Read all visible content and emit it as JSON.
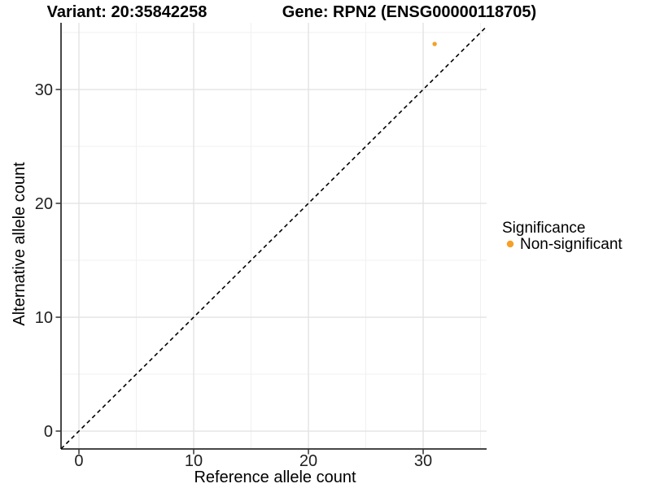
{
  "header": {
    "title_left": "Variant: 20:35842258",
    "title_right": "Gene: RPN2 (ENSG00000118705)"
  },
  "legend": {
    "title": "Significance",
    "items": [
      {
        "label": "Non-significant",
        "color": "#F5A028"
      }
    ]
  },
  "chart_data": {
    "type": "scatter",
    "title": "Variant: 20:35842258 | Gene: RPN2 (ENSG00000118705)",
    "xlabel": "Reference allele count",
    "ylabel": "Alternative allele count",
    "xlim": [
      -1.56,
      35.53
    ],
    "ylim": [
      -1.57,
      35.86
    ],
    "x_ticks_major": [
      0,
      10,
      20,
      30
    ],
    "x_ticks_minor": [
      5,
      15,
      25,
      35
    ],
    "y_ticks_major": [
      0,
      10,
      20,
      30
    ],
    "y_ticks_minor": [
      5,
      15,
      25,
      35
    ],
    "series": [
      {
        "name": "Non-significant",
        "color": "#F5A028",
        "points": [
          {
            "x": 31,
            "y": 34
          }
        ]
      }
    ],
    "reference_line": {
      "kind": "identity",
      "slope": 1,
      "intercept": 0,
      "style": "dashed",
      "color": "#000000"
    },
    "grid": true,
    "legend_position": "right"
  },
  "colors": {
    "point": "#F5A028",
    "grid_major": "#E3E3E3",
    "grid_minor": "#F0F0F0",
    "axis_line": "#474747",
    "tick_mark": "#333333"
  }
}
